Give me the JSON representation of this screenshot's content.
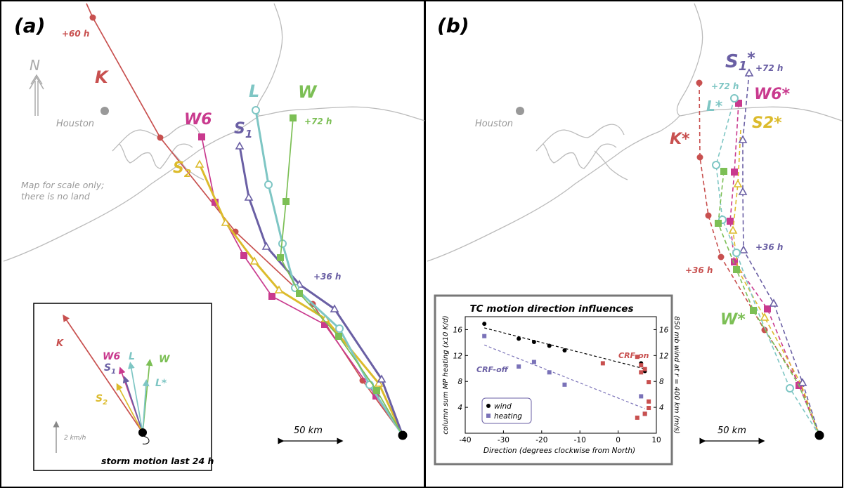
{
  "colors": {
    "K": "#c8504f",
    "W6": "#c93a8e",
    "S1": "#6a5fa4",
    "S2": "#dcbb2c",
    "L": "#7ec6c4",
    "W": "#7cbf55",
    "coast": "#bbbbbb",
    "mapText": "#999999",
    "panelBorder": "#000000"
  },
  "panel_a": {
    "label": "(a)",
    "north_symbol": "N",
    "city": "Houston",
    "note_line1": "Map for scale only;",
    "note_line2": "there is no land",
    "scale_label": "50 km",
    "tracks": {
      "K": {
        "label": "K",
        "time": "+60 h"
      },
      "W6": {
        "label": "W6"
      },
      "S1": {
        "label": "S",
        "sub": "1",
        "time": "+36 h"
      },
      "S2": {
        "label": "S",
        "sub": "2"
      },
      "L": {
        "label": "L"
      },
      "W": {
        "label": "W",
        "time": "+72 h"
      }
    },
    "inset": {
      "title": "storm motion last 24 h",
      "speed_label": "2 km/h",
      "labels": {
        "K": "K",
        "W6": "W6",
        "S1": "S",
        "S1_sub": "1",
        "S2": "S",
        "S2_sub": "2",
        "L": "L",
        "W": "W",
        "Lstar": "L*"
      }
    }
  },
  "panel_b": {
    "label": "(b)",
    "city": "Houston",
    "scale_label": "50 km",
    "tracks": {
      "S1": {
        "label": "S",
        "sub": "1",
        "star": "*",
        "time72": "+72 h",
        "time36": "+36 h"
      },
      "L": {
        "label": "L*",
        "time": "+72 h"
      },
      "W6": {
        "label": "W6*"
      },
      "S2": {
        "label": "S2*"
      },
      "K": {
        "label": "K*",
        "time": "+36 h"
      },
      "W": {
        "label": "W*"
      }
    }
  },
  "chart_data": {
    "type": "scatter",
    "title": "TC motion direction influences",
    "xlabel": "Direction (degrees clockwise from North)",
    "ylabel_left": "column sum MP heating (x10 K/d)",
    "ylabel_right": "850 mb wind at r = 400 km (m/s)",
    "xlim": [
      -40,
      10
    ],
    "ylim": [
      0,
      18
    ],
    "x_ticks": [
      -40,
      -30,
      -20,
      -10,
      0,
      10
    ],
    "y_ticks_left": [
      4,
      8,
      12,
      16
    ],
    "y_ticks_right": [
      4,
      8,
      12,
      16
    ],
    "legend": [
      "wind",
      "heating"
    ],
    "annotations": [
      "CRF-on",
      "CRF-off"
    ],
    "series": [
      {
        "name": "wind",
        "color": "#000000",
        "marker": "circle",
        "x": [
          -35,
          -26,
          -22,
          -18,
          -14,
          6,
          7
        ],
        "y": [
          16.9,
          14.6,
          14.1,
          13.5,
          12.8,
          10.8,
          9.6
        ]
      },
      {
        "name": "heating",
        "color": "#7a72b8",
        "marker": "square",
        "x": [
          -35,
          -26,
          -22,
          -18,
          -14,
          6,
          7
        ],
        "y": [
          15.0,
          10.3,
          11.0,
          9.4,
          7.5,
          5.7,
          3.0
        ]
      },
      {
        "name": "",
        "color": "#c8504f",
        "marker": "square",
        "x": [
          -4,
          5,
          6,
          7,
          8,
          8,
          8,
          7,
          5,
          6
        ],
        "y": [
          10.8,
          11.8,
          9.4,
          9.9,
          7.9,
          4.9,
          3.9,
          3.0,
          2.4,
          10.5
        ]
      }
    ]
  }
}
